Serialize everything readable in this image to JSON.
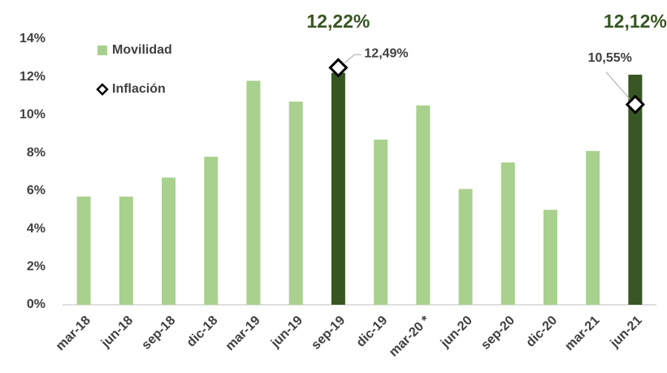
{
  "chart_data": {
    "type": "bar",
    "categories": [
      "mar-18",
      "jun-18",
      "sep-18",
      "dic-18",
      "mar-19",
      "jun-19",
      "sep-19",
      "dic-19",
      "mar-20 *",
      "jun-20",
      "sep-20",
      "dic-20",
      "mar-21",
      "jun-21"
    ],
    "series": [
      {
        "name": "Movilidad",
        "type": "bar",
        "color": "#a9d18e",
        "colors": [
          "#a9d18e",
          "#a9d18e",
          "#a9d18e",
          "#a9d18e",
          "#a9d18e",
          "#a9d18e",
          "#375623",
          "#a9d18e",
          "#a9d18e",
          "#a9d18e",
          "#a9d18e",
          "#a9d18e",
          "#a9d18e",
          "#375623"
        ],
        "values": [
          5.7,
          5.7,
          6.7,
          7.8,
          11.8,
          10.7,
          12.22,
          8.7,
          10.5,
          6.1,
          7.5,
          5.0,
          8.1,
          12.12
        ],
        "value_labels": [
          null,
          null,
          null,
          null,
          null,
          null,
          "12,22%",
          null,
          null,
          null,
          null,
          null,
          null,
          "12,12%"
        ]
      },
      {
        "name": "Inflación",
        "type": "marker",
        "color": "#000000",
        "values": [
          null,
          null,
          null,
          null,
          null,
          null,
          12.49,
          null,
          null,
          null,
          null,
          null,
          null,
          10.55
        ],
        "value_labels": [
          null,
          null,
          null,
          null,
          null,
          null,
          "12,49%",
          null,
          null,
          null,
          null,
          null,
          null,
          "10,55%"
        ]
      }
    ],
    "ylim": [
      0,
      14
    ],
    "yticks": [
      {
        "value": 0,
        "label": "0%"
      },
      {
        "value": 2,
        "label": "2%"
      },
      {
        "value": 4,
        "label": "4%"
      },
      {
        "value": 6,
        "label": "6%"
      },
      {
        "value": 8,
        "label": "8%"
      },
      {
        "value": 10,
        "label": "10%"
      },
      {
        "value": 12,
        "label": "12%"
      },
      {
        "value": 14,
        "label": "14%"
      }
    ],
    "grid": false,
    "legend": "top-left"
  }
}
